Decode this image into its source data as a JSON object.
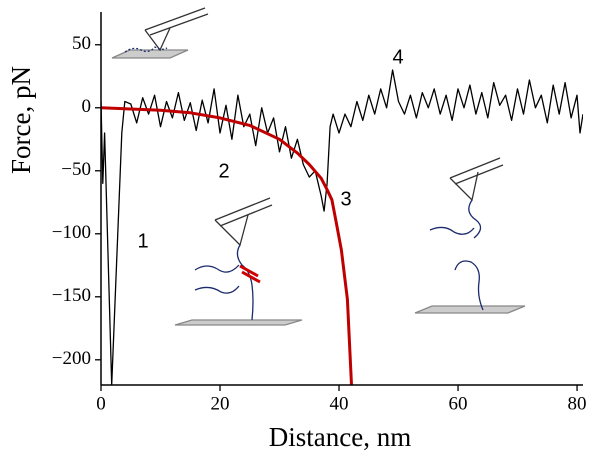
{
  "chart_data": {
    "type": "line",
    "x_label": "Distance, nm",
    "y_label": "Force, pN",
    "annotations": [
      "1",
      "2",
      "3",
      "4"
    ],
    "xlim": [
      0,
      81
    ],
    "ylim": [
      -220,
      76
    ],
    "xticks": [
      0,
      20,
      40,
      60,
      80
    ],
    "yticks": [
      {
        "value": -200,
        "label": "−200"
      },
      {
        "value": -150,
        "label": "−150"
      },
      {
        "value": -100,
        "label": "−100"
      },
      {
        "value": -50,
        "label": "−50"
      },
      0,
      50
    ],
    "series": [
      {
        "color": "#000000",
        "x": [
          0,
          0.3,
          0.6,
          1.8,
          3.5,
          4,
          5,
          6,
          7,
          8,
          9,
          10,
          11,
          12,
          13,
          14,
          15,
          16,
          17,
          18,
          19,
          20,
          21,
          22,
          23,
          24,
          25,
          26,
          27,
          28,
          29,
          30,
          31,
          32,
          33,
          34,
          35,
          36,
          37,
          37.5,
          38,
          38.5,
          39,
          40,
          41,
          42,
          43,
          44,
          45,
          46,
          47,
          48,
          49,
          50,
          51,
          52,
          53,
          54,
          55,
          56,
          57,
          58,
          59,
          60,
          61,
          62,
          63,
          64,
          65,
          66,
          67,
          68,
          69,
          70,
          71,
          72,
          73,
          74,
          75,
          76,
          77,
          78,
          79,
          80,
          80.5,
          81
        ],
        "values": [
          5,
          -60,
          -20,
          -220,
          -20,
          5,
          3,
          -12,
          8,
          -5,
          10,
          -15,
          5,
          -8,
          12,
          -10,
          4,
          -18,
          6,
          -12,
          15,
          -20,
          2,
          -25,
          10,
          -15,
          -5,
          -30,
          0,
          -20,
          -8,
          -35,
          -15,
          -40,
          -25,
          -45,
          -55,
          -50,
          -70,
          -82,
          -60,
          -15,
          -5,
          -20,
          -5,
          -15,
          5,
          -10,
          10,
          -5,
          15,
          0,
          30,
          5,
          -5,
          10,
          -8,
          12,
          0,
          15,
          -5,
          10,
          -10,
          15,
          0,
          18,
          -5,
          12,
          -8,
          20,
          2,
          10,
          -10,
          15,
          -5,
          22,
          0,
          10,
          -12,
          18,
          -5,
          20,
          -8,
          10,
          -20,
          -5
        ]
      },
      {
        "color": "#c00000",
        "x": [
          0,
          5,
          10,
          15,
          20,
          25,
          30,
          33,
          35,
          37,
          38,
          38.8,
          39.5,
          40.4,
          41.4,
          42.1
        ],
        "values": [
          0,
          -1,
          -2,
          -4,
          -8,
          -14,
          -25,
          -36,
          -45,
          -56,
          -65,
          -73,
          -90,
          -113,
          -152,
          -220
        ]
      }
    ]
  }
}
